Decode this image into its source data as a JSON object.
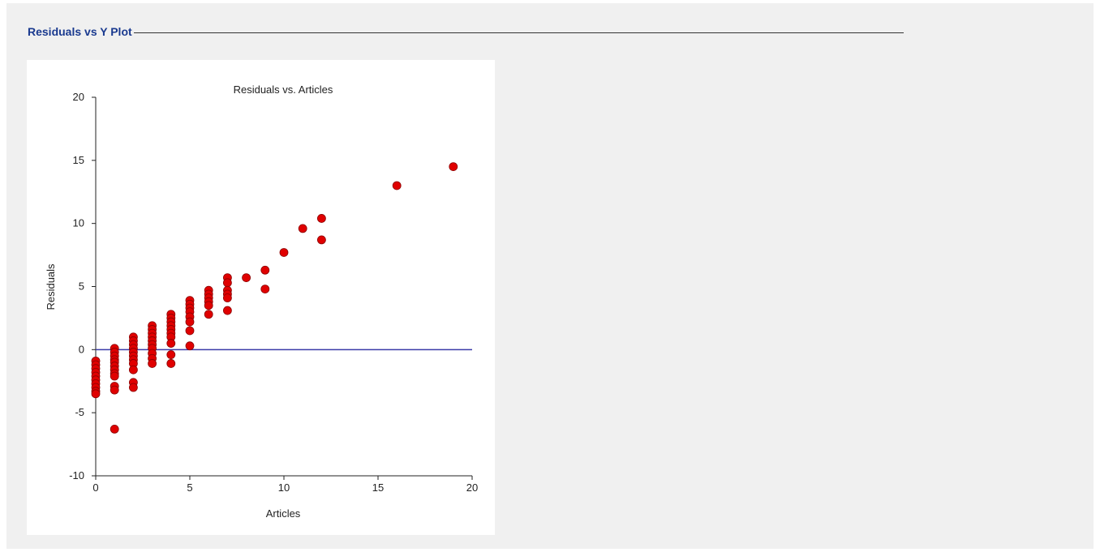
{
  "section": {
    "title": "Residuals vs Y Plot"
  },
  "chart_data": {
    "type": "scatter",
    "title": "Residuals vs. Articles",
    "xlabel": "Articles",
    "ylabel": "Residuals",
    "xlim": [
      0,
      20
    ],
    "ylim": [
      -10,
      20
    ],
    "xticks": [
      0,
      5,
      10,
      15,
      20
    ],
    "yticks": [
      -10,
      -5,
      0,
      5,
      10,
      15,
      20
    ],
    "reference_line": {
      "y": 0,
      "color": "#3a3aa8"
    },
    "marker_color": "#e00000",
    "marker_edge": "#8b0000",
    "grid": false,
    "points": [
      [
        0,
        -0.9
      ],
      [
        0,
        -1.2
      ],
      [
        0,
        -1.5
      ],
      [
        0,
        -1.8
      ],
      [
        0,
        -2.1
      ],
      [
        0,
        -2.4
      ],
      [
        0,
        -2.7
      ],
      [
        0,
        -3.0
      ],
      [
        0,
        -3.3
      ],
      [
        0,
        -3.5
      ],
      [
        1,
        0.1
      ],
      [
        1,
        -0.2
      ],
      [
        1,
        -0.5
      ],
      [
        1,
        -0.8
      ],
      [
        1,
        -1.0
      ],
      [
        1,
        -1.3
      ],
      [
        1,
        -1.6
      ],
      [
        1,
        -1.9
      ],
      [
        1,
        -2.1
      ],
      [
        1,
        -2.9
      ],
      [
        1,
        -3.2
      ],
      [
        1,
        -6.3
      ],
      [
        2,
        1.0
      ],
      [
        2,
        0.7
      ],
      [
        2,
        0.4
      ],
      [
        2,
        0.1
      ],
      [
        2,
        -0.2
      ],
      [
        2,
        -0.5
      ],
      [
        2,
        -0.8
      ],
      [
        2,
        -1.1
      ],
      [
        2,
        -1.6
      ],
      [
        2,
        -2.6
      ],
      [
        2,
        -3.0
      ],
      [
        3,
        1.9
      ],
      [
        3,
        1.6
      ],
      [
        3,
        1.3
      ],
      [
        3,
        1.0
      ],
      [
        3,
        0.7
      ],
      [
        3,
        0.4
      ],
      [
        3,
        0.1
      ],
      [
        3,
        -0.3
      ],
      [
        3,
        -0.7
      ],
      [
        3,
        -1.1
      ],
      [
        4,
        2.8
      ],
      [
        4,
        2.5
      ],
      [
        4,
        2.2
      ],
      [
        4,
        1.9
      ],
      [
        4,
        1.6
      ],
      [
        4,
        1.3
      ],
      [
        4,
        1.0
      ],
      [
        4,
        0.5
      ],
      [
        4,
        -0.4
      ],
      [
        4,
        -1.1
      ],
      [
        5,
        3.9
      ],
      [
        5,
        3.6
      ],
      [
        5,
        3.3
      ],
      [
        5,
        3.0
      ],
      [
        5,
        2.6
      ],
      [
        5,
        2.2
      ],
      [
        5,
        1.5
      ],
      [
        5,
        0.3
      ],
      [
        6,
        4.7
      ],
      [
        6,
        4.4
      ],
      [
        6,
        4.1
      ],
      [
        6,
        3.8
      ],
      [
        6,
        3.5
      ],
      [
        6,
        2.8
      ],
      [
        7,
        5.7
      ],
      [
        7,
        5.3
      ],
      [
        7,
        4.7
      ],
      [
        7,
        4.4
      ],
      [
        7,
        4.1
      ],
      [
        7,
        3.1
      ],
      [
        8,
        5.7
      ],
      [
        9,
        6.3
      ],
      [
        9,
        4.8
      ],
      [
        10,
        7.7
      ],
      [
        11,
        9.6
      ],
      [
        12,
        10.4
      ],
      [
        12,
        8.7
      ],
      [
        16,
        13.0
      ],
      [
        19,
        14.5
      ]
    ]
  }
}
